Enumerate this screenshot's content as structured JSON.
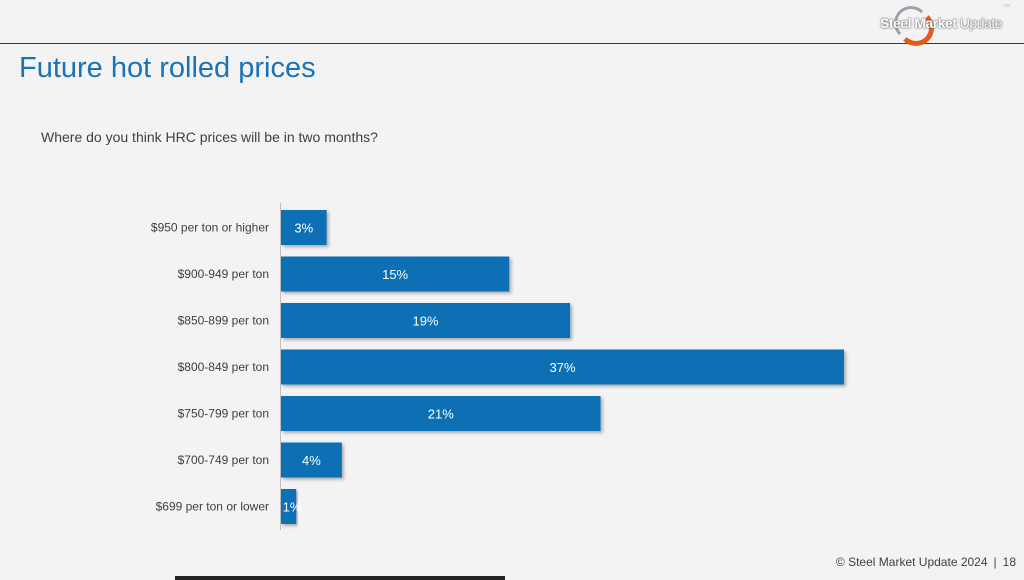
{
  "slide": {
    "title": "Future hot rolled prices",
    "question": "Where do you think HRC prices will be in two months?",
    "logo_text_bold": "Steel Market",
    "logo_text_light": " Update",
    "footer_text": "© Steel Market Update 2024",
    "footer_separator": "|",
    "page_number": "18"
  },
  "colors": {
    "bar": "#1170b4",
    "title": "#1a73b6"
  },
  "chart_data": {
    "type": "bar",
    "orientation": "horizontal",
    "title": "Where do you think HRC prices will be in two months?",
    "categories": [
      "$950 per ton or higher",
      "$900-949 per ton",
      "$850-899 per ton",
      "$800-849 per ton",
      "$750-799 per ton",
      "$700-749 per ton",
      "$699 per ton or lower"
    ],
    "values": [
      3,
      15,
      19,
      37,
      21,
      4,
      1
    ],
    "value_labels": [
      "3%",
      "15%",
      "19%",
      "37%",
      "21%",
      "4%",
      "1%"
    ],
    "unit": "%",
    "xlim": [
      0,
      37
    ],
    "grid": false,
    "legend": "none"
  }
}
